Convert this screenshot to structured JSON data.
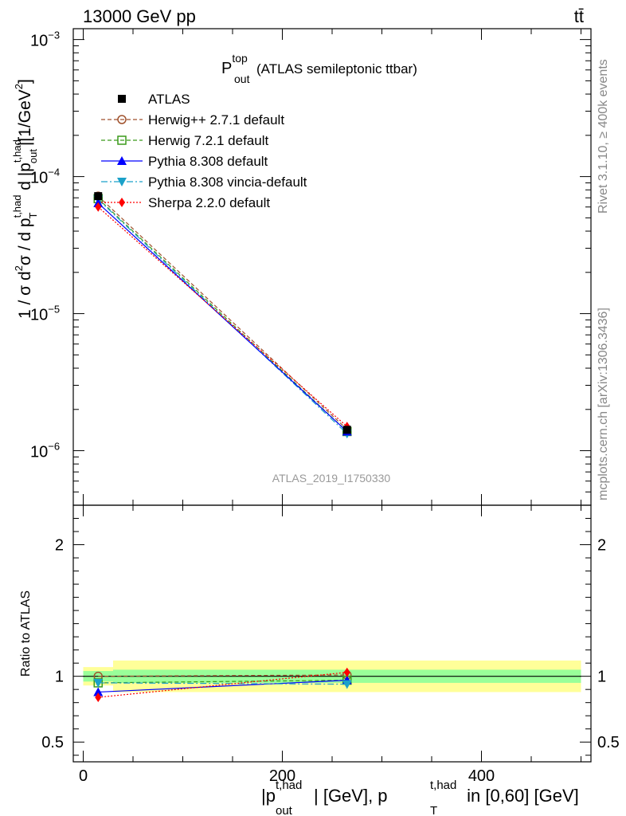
{
  "header": {
    "energy_label": "13000 GeV pp",
    "process_label": "tt̄"
  },
  "side_labels": {
    "rivet": "Rivet 3.1.10, ≥ 400k events",
    "mcplots": "mcplots.cern.ch [arXiv:1306.3436]"
  },
  "watermark": "ATLAS_2019_I1750330",
  "colors": {
    "herwig_pp": "#a0522d",
    "herwig7": "#3a9a1a",
    "pythia": "#0000ff",
    "vincia": "#1ba1c9",
    "sherpa": "#ff0000",
    "band_inner": "#99ff99",
    "band_outer": "#ffff99"
  },
  "chart_data": [
    {
      "type": "line",
      "title_main": "P",
      "title_sup": "top",
      "title_sub": "out",
      "title_rest": "(ATLAS semileptonic ttbar)",
      "ylabel": "1 / σ d²σ / d p_T^{t,had} d |p_out^{t,had}| [1/GeV²]",
      "ylabel_parts": {
        "a": "1 / σ d",
        "a_sup": "2",
        "b": "σ / d p",
        "b_sup": "t,had",
        "b_sub": "T",
        "c": " d |p",
        "c_sup": "t,had",
        "c_sub": "out",
        "d": "|[1/GeV",
        "d_sup": "2",
        "e": "]"
      },
      "yscale": "log",
      "ylim": [
        4e-07,
        0.0012
      ],
      "xlim": [
        -10,
        510
      ],
      "y_ticks": [
        {
          "value": 0.001,
          "base": "10",
          "exp": "−3"
        },
        {
          "value": 0.0001,
          "base": "10",
          "exp": "−4"
        },
        {
          "value": 1e-05,
          "base": "10",
          "exp": "−5"
        },
        {
          "value": 1e-06,
          "base": "10",
          "exp": "−6"
        }
      ],
      "legend_position": "top-left",
      "series": [
        {
          "name": "ATLAS",
          "key": "data",
          "x": [
            15,
            265
          ],
          "y": [
            7.2e-05,
            1.42e-06
          ],
          "yerr": [
            2.5e-06,
            8e-08
          ]
        },
        {
          "name": "Herwig++ 2.7.1 default",
          "key": "herwig_pp",
          "x": [
            15,
            265
          ],
          "y": [
            7.2e-05,
            1.43e-06
          ]
        },
        {
          "name": "Herwig 7.2.1 default",
          "key": "herwig7",
          "x": [
            15,
            265
          ],
          "y": [
            6.9e-05,
            1.38e-06
          ]
        },
        {
          "name": "Pythia 8.308 default",
          "key": "pythia",
          "x": [
            15,
            265
          ],
          "y": [
            6.4e-05,
            1.38e-06
          ]
        },
        {
          "name": "Pythia 8.308 vincia-default",
          "key": "vincia",
          "x": [
            15,
            265
          ],
          "y": [
            6.8e-05,
            1.33e-06
          ]
        },
        {
          "name": "Sherpa 2.2.0 default",
          "key": "sherpa",
          "x": [
            15,
            265
          ],
          "y": [
            6e-05,
            1.5e-06
          ]
        }
      ]
    },
    {
      "type": "line",
      "ylabel": "Ratio to ATLAS",
      "xlabel_parts": {
        "a": "|p",
        "a_sup": "t,had",
        "a_sub": "out",
        "b": "| [GeV], p",
        "b_sup": "t,had",
        "b_sub": "T",
        "c": " in [0,60] [GeV]"
      },
      "xlim": [
        -10,
        510
      ],
      "ylim": [
        0.35,
        2.3
      ],
      "x_ticks": [
        {
          "value": 0,
          "label": "0"
        },
        {
          "value": 200,
          "label": "200"
        },
        {
          "value": 400,
          "label": "400"
        }
      ],
      "y_ticks": [
        {
          "value": 0.5,
          "label": "0.5"
        },
        {
          "value": 1,
          "label": "1"
        },
        {
          "value": 2,
          "label": "2"
        }
      ],
      "bands": [
        {
          "x": [
            0,
            30
          ],
          "inner": [
            0.96,
            1.04
          ],
          "outer": [
            0.93,
            1.07
          ]
        },
        {
          "x": [
            30,
            500
          ],
          "inner": [
            0.95,
            1.05
          ],
          "outer": [
            0.88,
            1.12
          ]
        }
      ],
      "series": [
        {
          "name": "Herwig++ 2.7.1 default",
          "key": "herwig_pp",
          "x": [
            15,
            265
          ],
          "y": [
            1.0,
            1.01
          ]
        },
        {
          "name": "Herwig 7.2.1 default",
          "key": "herwig7",
          "x": [
            15,
            265
          ],
          "y": [
            0.95,
            0.97
          ]
        },
        {
          "name": "Pythia 8.308 default",
          "key": "pythia",
          "x": [
            15,
            265
          ],
          "y": [
            0.88,
            0.97
          ]
        },
        {
          "name": "Pythia 8.308 vincia-default",
          "key": "vincia",
          "x": [
            15,
            265
          ],
          "y": [
            0.95,
            0.94
          ]
        },
        {
          "name": "Sherpa 2.2.0 default",
          "key": "sherpa",
          "x": [
            15,
            265
          ],
          "y": [
            0.84,
            1.03
          ]
        }
      ]
    }
  ]
}
